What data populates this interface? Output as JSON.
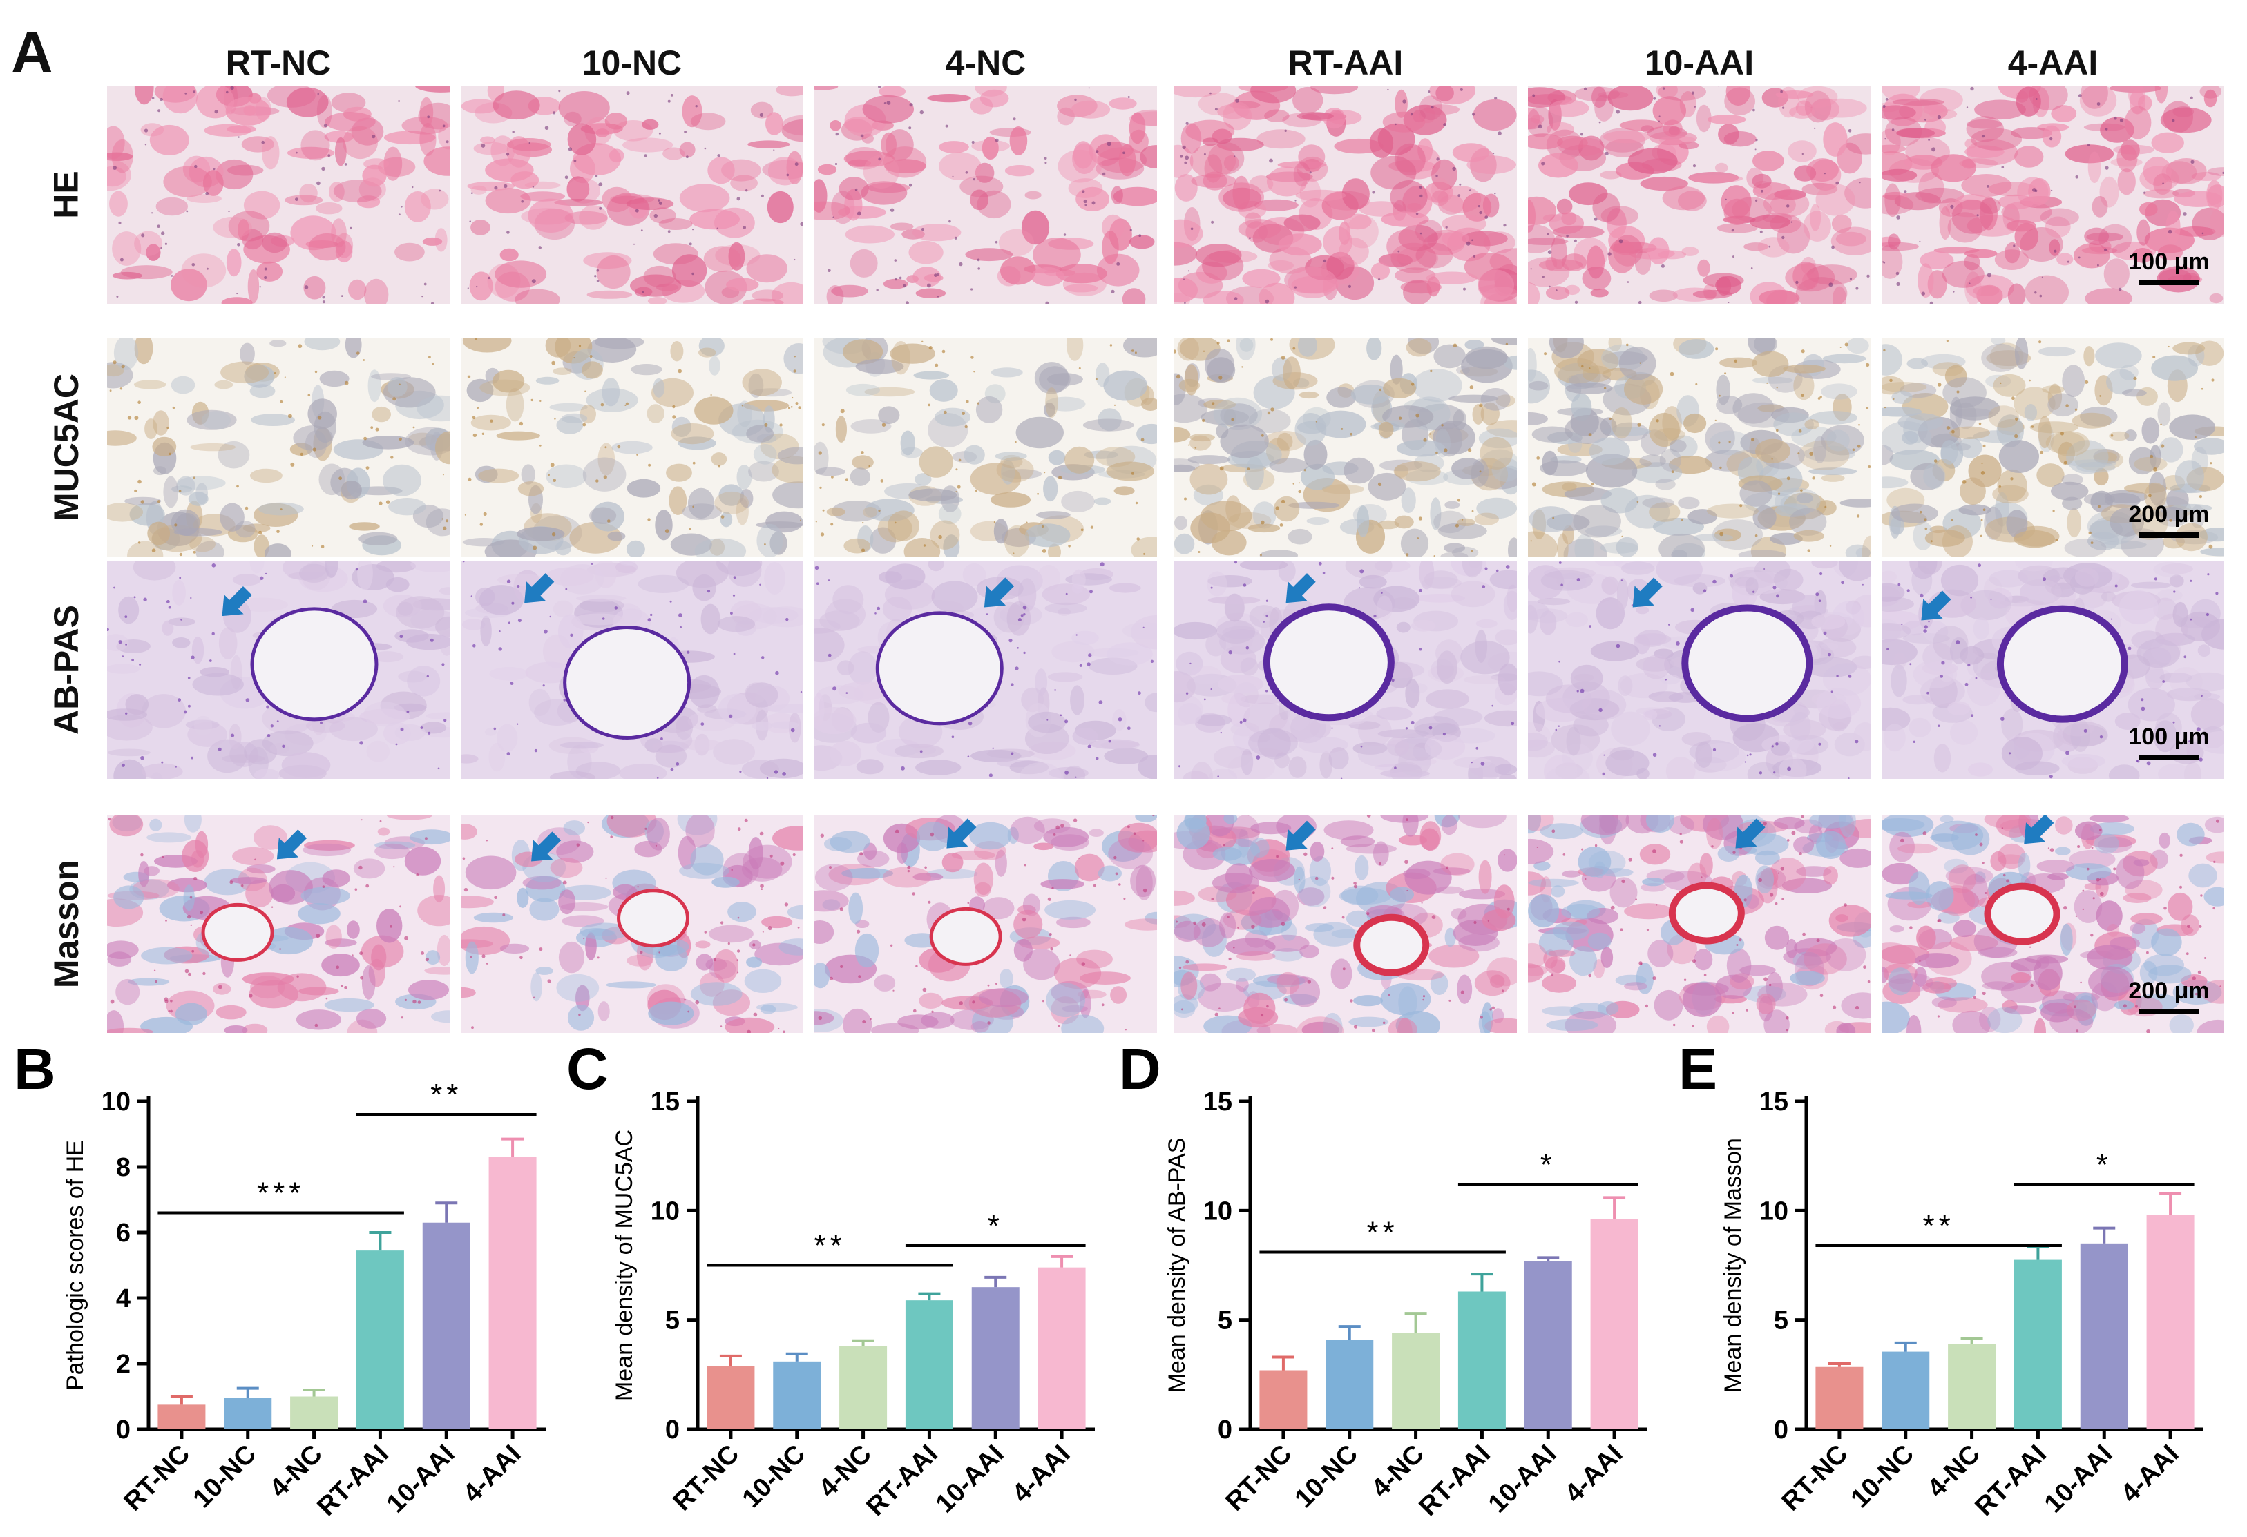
{
  "figure": {
    "panel_A_label": "A",
    "columns": [
      "RT-NC",
      "10-NC",
      "4-NC",
      "RT-AAI",
      "10-AAI",
      "4-AAI"
    ],
    "rows": [
      {
        "label": "HE",
        "stain": "he",
        "scale": "100 μm"
      },
      {
        "label": "MUC5AC",
        "stain": "muc",
        "scale": "200 μm"
      },
      {
        "label": "AB-PAS",
        "stain": "abpas",
        "scale": "100 μm"
      },
      {
        "label": "Masson",
        "stain": "masson",
        "scale": "200 μm"
      }
    ],
    "arrow_color": "#1f7cc1"
  },
  "chart_data": [
    {
      "panel": "B",
      "type": "bar",
      "categories": [
        "RT-NC",
        "10-NC",
        "4-NC",
        "RT-AAI",
        "10-AAI",
        "4-AAI"
      ],
      "values": [
        0.75,
        0.95,
        1.0,
        5.45,
        6.3,
        8.3
      ],
      "errors": [
        0.25,
        0.3,
        0.2,
        0.55,
        0.6,
        0.55
      ],
      "ylabel": "Pathologic scores of HE",
      "ylim": [
        0,
        10
      ],
      "yticks": [
        0,
        2,
        4,
        6,
        8,
        10
      ],
      "significance": [
        {
          "from": 0,
          "to": 3,
          "label": "***",
          "y": 6.6
        },
        {
          "from": 3,
          "to": 5,
          "label": "**",
          "y": 9.6
        }
      ]
    },
    {
      "panel": "C",
      "type": "bar",
      "categories": [
        "RT-NC",
        "10-NC",
        "4-NC",
        "RT-AAI",
        "10-AAI",
        "4-AAI"
      ],
      "values": [
        2.9,
        3.1,
        3.8,
        5.9,
        6.5,
        7.4
      ],
      "errors": [
        0.45,
        0.35,
        0.25,
        0.3,
        0.45,
        0.5
      ],
      "ylabel": "Mean density of MUC5AC",
      "ylim": [
        0,
        15
      ],
      "yticks": [
        0,
        5,
        10,
        15
      ],
      "significance": [
        {
          "from": 0,
          "to": 3,
          "label": "**",
          "y": 7.5
        },
        {
          "from": 3,
          "to": 5,
          "label": "*",
          "y": 8.4
        }
      ]
    },
    {
      "panel": "D",
      "type": "bar",
      "categories": [
        "RT-NC",
        "10-NC",
        "4-NC",
        "RT-AAI",
        "10-AAI",
        "4-AAI"
      ],
      "values": [
        2.7,
        4.1,
        4.4,
        6.3,
        7.7,
        9.6
      ],
      "errors": [
        0.6,
        0.6,
        0.9,
        0.8,
        0.15,
        1.0
      ],
      "ylabel": "Mean density of AB-PAS",
      "ylim": [
        0,
        15
      ],
      "yticks": [
        0,
        5,
        10,
        15
      ],
      "significance": [
        {
          "from": 0,
          "to": 3,
          "label": "**",
          "y": 8.1
        },
        {
          "from": 3,
          "to": 5,
          "label": "*",
          "y": 11.2
        }
      ]
    },
    {
      "panel": "E",
      "type": "bar",
      "categories": [
        "RT-NC",
        "10-NC",
        "4-NC",
        "RT-AAI",
        "10-AAI",
        "4-AAI"
      ],
      "values": [
        2.85,
        3.55,
        3.9,
        7.75,
        8.5,
        9.8
      ],
      "errors": [
        0.15,
        0.4,
        0.25,
        0.6,
        0.7,
        1.0
      ],
      "ylabel": "Mean density of Masson",
      "ylim": [
        0,
        15
      ],
      "yticks": [
        0,
        5,
        10,
        15
      ],
      "significance": [
        {
          "from": 0,
          "to": 3,
          "label": "**",
          "y": 8.4
        },
        {
          "from": 3,
          "to": 5,
          "label": "*",
          "y": 11.2
        }
      ]
    }
  ],
  "bar_colors": [
    "#e8918d",
    "#7db0d8",
    "#c9e0b9",
    "#6ec7c0",
    "#9595c9",
    "#f7b8d0"
  ],
  "error_colors": [
    "#e06a68",
    "#5b8ec4",
    "#a3c894",
    "#3fa39b",
    "#7b76b4",
    "#ee8fb0"
  ]
}
